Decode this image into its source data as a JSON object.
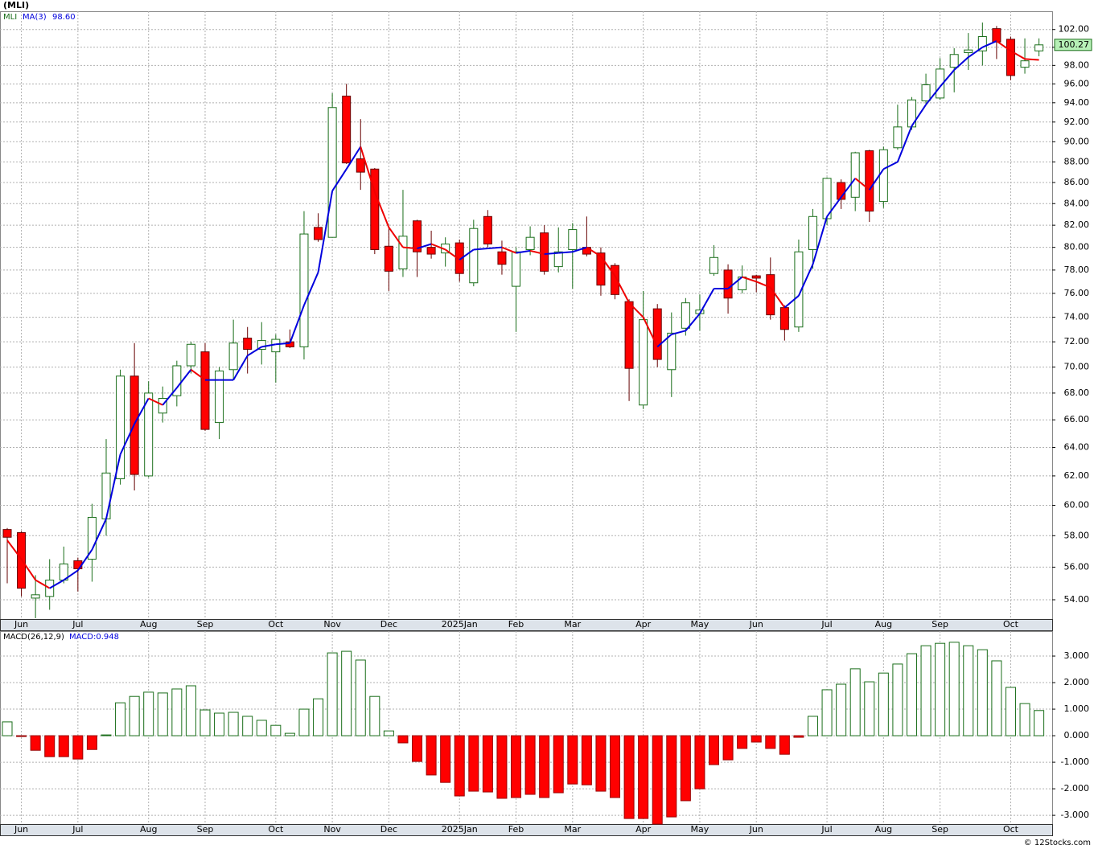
{
  "chart_data": [
    {
      "type": "candlestick",
      "title": "(MLI)",
      "log_scale": true,
      "grid": true,
      "ylim": [
        52.85,
        104.1
      ],
      "yticks": [
        {
          "value": 54,
          "label": "54.00"
        },
        {
          "value": 56,
          "label": "56.00"
        },
        {
          "value": 58,
          "label": "58.00"
        },
        {
          "value": 60,
          "label": "60.00"
        },
        {
          "value": 62,
          "label": "62.00"
        },
        {
          "value": 64,
          "label": "64.00"
        },
        {
          "value": 66,
          "label": "66.00"
        },
        {
          "value": 68,
          "label": "68.00"
        },
        {
          "value": 70,
          "label": "70.00"
        },
        {
          "value": 72,
          "label": "72.00"
        },
        {
          "value": 74,
          "label": "74.00"
        },
        {
          "value": 76,
          "label": "76.00"
        },
        {
          "value": 78,
          "label": "78.00"
        },
        {
          "value": 80,
          "label": "80.00"
        },
        {
          "value": 82,
          "label": "82.00"
        },
        {
          "value": 84,
          "label": "84.00"
        },
        {
          "value": 86,
          "label": "86.00"
        },
        {
          "value": 88,
          "label": "88.00"
        },
        {
          "value": 90,
          "label": "90.00"
        },
        {
          "value": 92,
          "label": "92.00"
        },
        {
          "value": 94,
          "label": "94.00"
        },
        {
          "value": 96,
          "label": "96.00"
        },
        {
          "value": 98,
          "label": "98.00"
        },
        {
          "value": 100,
          "label": "100.00"
        },
        {
          "value": 102,
          "label": "102.00"
        }
      ],
      "categories": [
        null,
        "Jun",
        null,
        null,
        null,
        "Jul",
        null,
        null,
        null,
        null,
        "Aug",
        null,
        null,
        null,
        "Sep",
        null,
        null,
        null,
        null,
        "Oct",
        null,
        null,
        null,
        "Nov",
        null,
        null,
        null,
        "Dec",
        null,
        null,
        null,
        null,
        "2025Jan",
        null,
        null,
        null,
        "Feb",
        null,
        null,
        null,
        "Mar",
        null,
        null,
        null,
        null,
        "Apr",
        null,
        null,
        null,
        "May",
        null,
        null,
        null,
        "Jun",
        null,
        null,
        null,
        null,
        "Jul",
        null,
        null,
        null,
        "Aug",
        null,
        null,
        null,
        "Sep",
        null,
        null,
        null,
        null,
        "Oct",
        null,
        null
      ],
      "series": [
        {
          "name": "MLI",
          "up_color": "#1a6e1a",
          "down_color": "#ff0000",
          "open": [
            58.4,
            58.2,
            54.1,
            54.2,
            55.2,
            56.4,
            56.5,
            59.1,
            61.8,
            69.3,
            62.0,
            66.5,
            67.8,
            70.1,
            71.2,
            65.8,
            69.8,
            72.3,
            71.4,
            71.2,
            72.0,
            71.6,
            81.8,
            80.9,
            94.7,
            88.3,
            87.3,
            80.1,
            78.1,
            82.4,
            80.0,
            79.5,
            80.4,
            76.9,
            82.8,
            79.6,
            76.6,
            79.8,
            81.3,
            78.3,
            79.8,
            80.0,
            79.5,
            78.4,
            75.3,
            67.1,
            74.7,
            69.8,
            73.1,
            74.3,
            77.7,
            78.0,
            76.3,
            77.5,
            77.6,
            74.8,
            73.2,
            79.8,
            82.6,
            86.0,
            84.6,
            89.1,
            84.2,
            89.4,
            91.5,
            94.2,
            94.5,
            97.8,
            99.4,
            99.6,
            102.1,
            100.9,
            97.8,
            99.6
          ],
          "high": [
            58.5,
            58.3,
            55.5,
            56.5,
            57.3,
            56.6,
            60.1,
            64.6,
            69.8,
            71.9,
            68.9,
            68.5,
            70.5,
            72.0,
            71.9,
            70.0,
            73.8,
            73.2,
            73.6,
            72.6,
            73.0,
            83.3,
            83.1,
            95.0,
            96.0,
            92.3,
            87.4,
            81.9,
            85.3,
            82.5,
            81.5,
            80.9,
            80.7,
            82.5,
            83.4,
            80.6,
            80.0,
            81.9,
            82.0,
            81.8,
            82.2,
            82.8,
            80.0,
            78.6,
            75.5,
            76.2,
            75.1,
            74.4,
            75.6,
            75.9,
            80.2,
            78.5,
            78.4,
            77.6,
            79.1,
            75.0,
            80.7,
            83.5,
            86.5,
            86.3,
            89.0,
            89.2,
            89.5,
            93.8,
            94.6,
            97.1,
            98.8,
            99.9,
            101.6,
            102.8,
            102.4,
            101.2,
            101.0,
            101.0
          ],
          "low": [
            55.0,
            54.2,
            52.9,
            53.4,
            55.0,
            54.5,
            55.1,
            58.0,
            61.4,
            61.0,
            61.9,
            65.8,
            67.0,
            69.5,
            65.2,
            64.6,
            69.0,
            69.5,
            70.2,
            68.8,
            71.5,
            70.6,
            80.5,
            80.9,
            87.8,
            85.3,
            79.4,
            76.2,
            77.4,
            77.4,
            79.0,
            78.3,
            77.0,
            76.6,
            80.0,
            77.6,
            72.8,
            79.3,
            77.6,
            77.8,
            76.4,
            79.2,
            75.8,
            75.5,
            67.4,
            66.8,
            70.0,
            67.7,
            72.5,
            72.9,
            77.5,
            74.3,
            76.0,
            76.1,
            73.8,
            72.1,
            72.8,
            78.1,
            82.0,
            83.5,
            83.3,
            82.3,
            83.6,
            89.2,
            91.2,
            93.9,
            94.3,
            95.1,
            97.5,
            98.0,
            98.7,
            96.4,
            97.1,
            99.0
          ],
          "close": [
            57.9,
            54.7,
            54.3,
            55.2,
            56.2,
            55.9,
            59.2,
            62.2,
            69.3,
            62.1,
            68.0,
            67.6,
            70.1,
            71.8,
            65.3,
            69.7,
            71.9,
            71.4,
            72.1,
            72.2,
            71.6,
            81.2,
            80.7,
            93.5,
            87.9,
            87.0,
            79.8,
            77.9,
            81.0,
            79.6,
            79.4,
            80.3,
            77.7,
            81.7,
            80.3,
            78.5,
            79.6,
            80.9,
            77.9,
            79.6,
            81.6,
            79.4,
            76.7,
            75.9,
            69.9,
            73.8,
            70.6,
            72.7,
            75.2,
            74.6,
            79.1,
            75.6,
            77.4,
            77.3,
            74.2,
            73.0,
            79.6,
            82.8,
            86.4,
            84.4,
            88.9,
            83.3,
            89.2,
            91.5,
            94.3,
            95.9,
            97.6,
            99.2,
            99.7,
            101.2,
            100.6,
            96.9,
            98.5,
            100.27
          ],
          "last_label": "100.27"
        }
      ],
      "overlays": [
        {
          "name": "MA(3)",
          "color": "#0000dd",
          "down_color": "#ee0000",
          "value_label": "98.60",
          "values": [
            57.7,
            56.5,
            55.2,
            54.7,
            55.2,
            55.8,
            57.1,
            59.1,
            63.5,
            65.7,
            67.6,
            67.1,
            68.4,
            69.8,
            69.0,
            69.0,
            69.0,
            70.9,
            71.6,
            71.8,
            71.9,
            75.0,
            77.8,
            85.2,
            87.3,
            89.5,
            85.1,
            81.8,
            80.0,
            79.9,
            80.3,
            79.8,
            78.9,
            79.8,
            79.9,
            80.0,
            79.5,
            79.7,
            79.4,
            79.5,
            79.6,
            80.0,
            79.2,
            77.5,
            75.2,
            74.0,
            71.6,
            72.6,
            72.9,
            74.3,
            76.4,
            76.4,
            77.4,
            77.0,
            76.5,
            74.8,
            75.8,
            78.5,
            82.8,
            84.6,
            86.4,
            85.3,
            87.3,
            88.0,
            91.6,
            93.8,
            95.7,
            97.5,
            98.9,
            100.0,
            100.7,
            99.6,
            98.7,
            98.6
          ]
        }
      ]
    },
    {
      "type": "bar",
      "title": "MACD(26,12,9)",
      "value_label": "MACD:0.948",
      "grid": true,
      "up_color": "#1a6e1a",
      "down_color": "#ff0000",
      "ylim": [
        -3.33,
        3.94
      ],
      "yticks": [
        {
          "value": -3,
          "label": "-3.000"
        },
        {
          "value": -2,
          "label": "-2.000"
        },
        {
          "value": -1,
          "label": "-1.000"
        },
        {
          "value": 0,
          "label": "0.000"
        },
        {
          "value": 1,
          "label": "1.000"
        },
        {
          "value": 2,
          "label": "2.000"
        },
        {
          "value": 3,
          "label": "3.000"
        }
      ],
      "categories": [
        null,
        "Jun",
        null,
        null,
        null,
        "Jul",
        null,
        null,
        null,
        null,
        "Aug",
        null,
        null,
        null,
        "Sep",
        null,
        null,
        null,
        null,
        "Oct",
        null,
        null,
        null,
        "Nov",
        null,
        null,
        null,
        "Dec",
        null,
        null,
        null,
        null,
        "2025Jan",
        null,
        null,
        null,
        "Feb",
        null,
        null,
        null,
        "Mar",
        null,
        null,
        null,
        null,
        "Apr",
        null,
        null,
        null,
        "May",
        null,
        null,
        null,
        "Jun",
        null,
        null,
        null,
        null,
        "Jul",
        null,
        null,
        null,
        "Aug",
        null,
        null,
        null,
        "Sep",
        null,
        null,
        null,
        null,
        "Oct",
        null,
        null
      ],
      "values": [
        0.52,
        -0.03,
        -0.55,
        -0.79,
        -0.79,
        -0.88,
        -0.52,
        0.03,
        1.24,
        1.48,
        1.64,
        1.61,
        1.76,
        1.88,
        0.97,
        0.85,
        0.88,
        0.73,
        0.58,
        0.39,
        0.09,
        1.0,
        1.39,
        3.12,
        3.18,
        2.85,
        1.48,
        0.18,
        -0.27,
        -0.97,
        -1.48,
        -1.76,
        -2.27,
        -2.09,
        -2.12,
        -2.36,
        -2.33,
        -2.21,
        -2.33,
        -2.15,
        -1.82,
        -1.85,
        -2.09,
        -2.33,
        -3.12,
        -3.12,
        -3.33,
        -3.06,
        -2.45,
        -2.0,
        -1.09,
        -0.91,
        -0.48,
        -0.24,
        -0.48,
        -0.7,
        -0.06,
        0.73,
        1.73,
        1.94,
        2.52,
        2.03,
        2.36,
        2.7,
        3.09,
        3.39,
        3.48,
        3.52,
        3.39,
        3.24,
        2.82,
        1.82,
        1.21,
        0.948
      ]
    }
  ],
  "footer": "© 12Stocks.com"
}
